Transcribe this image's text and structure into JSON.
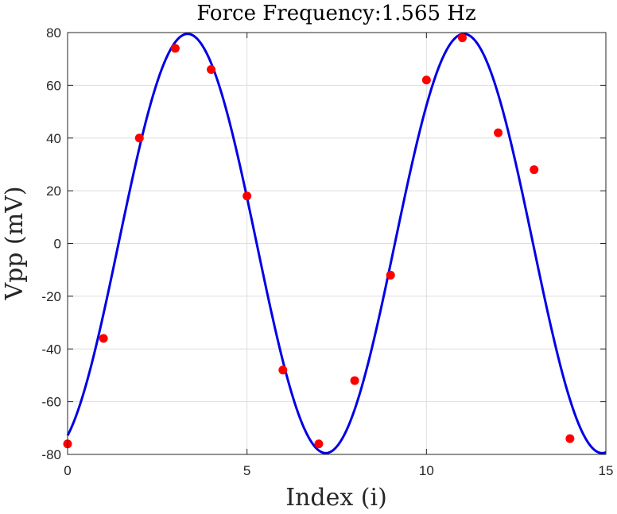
{
  "chart_data": {
    "type": "scatter",
    "title": "Force Frequency:1.565 Hz",
    "xlabel": "Index (i)",
    "ylabel": "Vpp (mV)",
    "xlim": [
      0,
      15
    ],
    "ylim": [
      -80,
      80
    ],
    "xticks": [
      0,
      5,
      10,
      15
    ],
    "yticks": [
      -80,
      -60,
      -40,
      -20,
      0,
      20,
      40,
      60,
      80
    ],
    "grid": true,
    "legend": "none",
    "series": [
      {
        "kind": "scatter",
        "color": "#ff0000",
        "x": [
          0,
          1,
          2,
          3,
          4,
          5,
          6,
          7,
          8,
          9,
          10,
          11,
          12,
          13,
          14
        ],
        "y": [
          -76,
          -36,
          40,
          74,
          66,
          18,
          -48,
          -76,
          -52,
          -12,
          62,
          78,
          42,
          28,
          -74
        ]
      },
      {
        "kind": "line",
        "color": "#0000e6",
        "function": "sine",
        "amplitude": 79.5,
        "period": 7.7,
        "phase_zero_x": 1.42,
        "x_range": [
          0,
          15
        ]
      }
    ]
  }
}
